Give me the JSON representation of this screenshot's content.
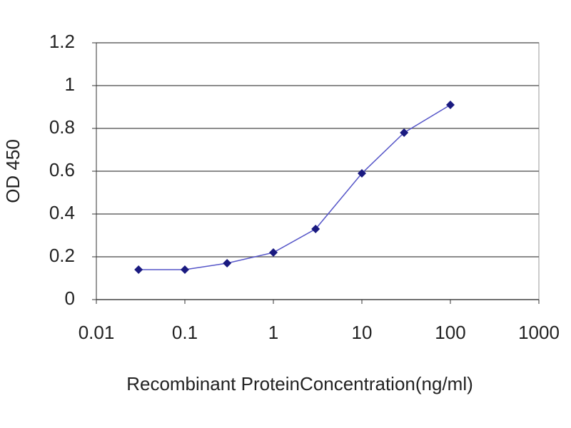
{
  "chart_data": {
    "type": "line",
    "xlabel": "Recombinant ProteinConcentration(ng/ml)",
    "ylabel": "OD 450",
    "x": [
      0.03,
      0.1,
      0.3,
      1,
      3,
      10,
      30,
      100
    ],
    "values": [
      0.14,
      0.14,
      0.17,
      0.22,
      0.33,
      0.59,
      0.78,
      0.91
    ],
    "color": "#5555c8",
    "marker_color": "#1a1a80",
    "xscale": "log",
    "xlim": [
      0.01,
      1000
    ],
    "xticks": [
      0.01,
      0.1,
      1,
      10,
      100,
      1000
    ],
    "ylim": [
      0,
      1.2
    ],
    "yticks": [
      0,
      0.2,
      0.4,
      0.6,
      0.8,
      1,
      1.2
    ],
    "grid": true
  }
}
